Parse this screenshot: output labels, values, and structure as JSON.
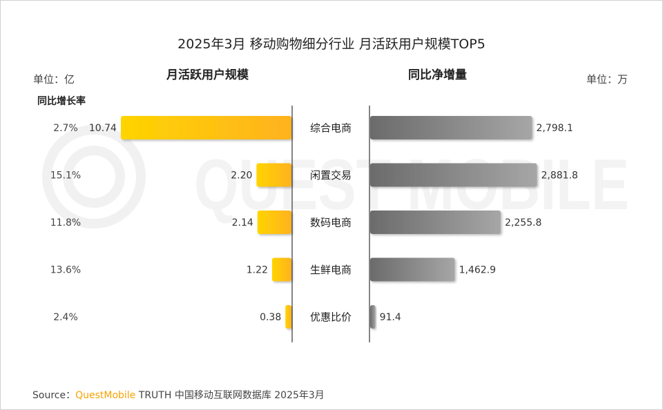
{
  "header": {
    "title": "2025年3月 移动购物细分行业 月活跃用户规模TOP5",
    "unit_left": "单位：亿",
    "unit_right": "单位：万",
    "mau_header": "月活跃用户规模",
    "net_header": "同比净增量",
    "yoy_header": "同比增长率"
  },
  "watermark": {
    "text": "QUEST MOBILE"
  },
  "source": {
    "prefix": "Source：",
    "brand": "QuestMobile",
    "suffix": " TRUTH 中国移动互联网数据库 2025年3月"
  },
  "colors": {
    "mau_bar_start": "#ffd400",
    "mau_bar_end": "#ffb21f",
    "net_bar_start": "#6b6b6b",
    "net_bar_end": "#a6a6a6",
    "brand": "#f5a300"
  },
  "chart_data": {
    "type": "bar",
    "categories": [
      "综合电商",
      "闲置交易",
      "数码电商",
      "生鲜电商",
      "优惠比价"
    ],
    "series": [
      {
        "name": "月活跃用户规模",
        "unit": "亿",
        "values": [
          10.74,
          2.2,
          2.14,
          1.22,
          0.38
        ],
        "labels": [
          "10.74",
          "2.20",
          "2.14",
          "1.22",
          "0.38"
        ]
      },
      {
        "name": "同比净增量",
        "unit": "万",
        "values": [
          2798.1,
          2881.8,
          2255.8,
          1462.9,
          91.4
        ],
        "labels": [
          "2,798.1",
          "2,881.8",
          "2,255.8",
          "1,462.9",
          "91.4"
        ]
      },
      {
        "name": "同比增长率",
        "values": [
          2.7,
          15.1,
          11.8,
          13.6,
          2.4
        ],
        "labels": [
          "2.7%",
          "15.1%",
          "11.8%",
          "13.6%",
          "2.4%"
        ]
      }
    ],
    "grid": false,
    "legend": "none"
  }
}
